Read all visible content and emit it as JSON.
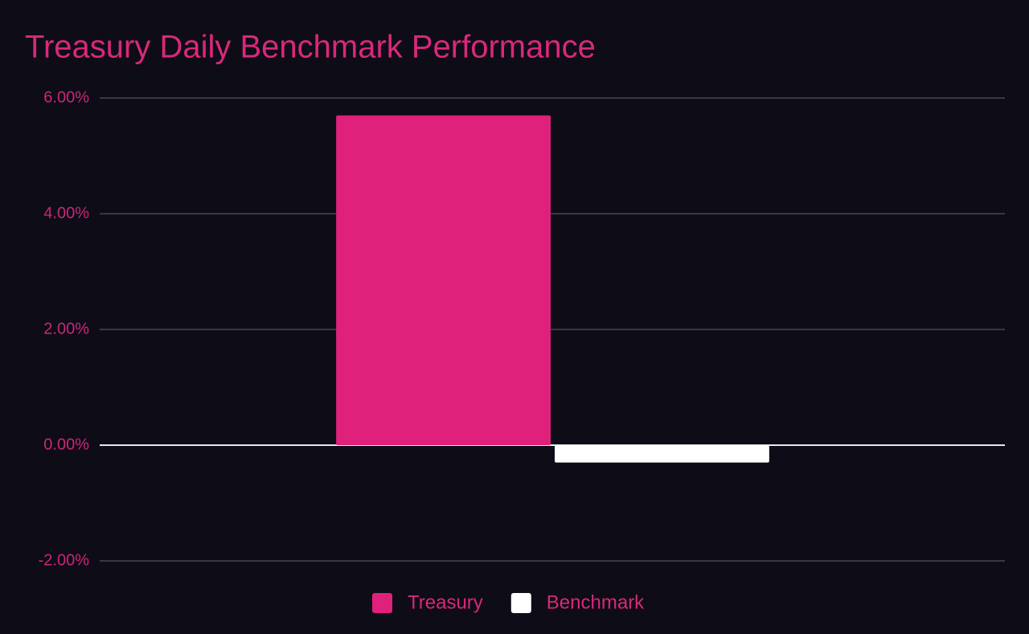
{
  "chart_data": {
    "type": "bar",
    "title": "Treasury Daily Benchmark Performance",
    "categories": [
      null
    ],
    "series": [
      {
        "name": "Treasury",
        "color": "#e0217b",
        "values": [
          5.7
        ]
      },
      {
        "name": "Benchmark",
        "color": "#ffffff",
        "values": [
          -0.3
        ]
      }
    ],
    "ylim": [
      -2,
      6
    ],
    "yticks": [
      {
        "value": -2,
        "label": "-2.00%"
      },
      {
        "value": 0,
        "label": "0.00%"
      },
      {
        "value": 2,
        "label": "2.00%"
      },
      {
        "value": 4,
        "label": "4.00%"
      },
      {
        "value": 6,
        "label": "6.00%"
      }
    ],
    "grid": true,
    "legend": "bottom"
  }
}
